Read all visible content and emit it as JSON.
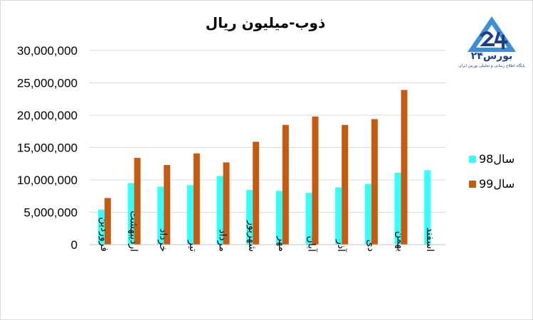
{
  "chart_data": {
    "type": "bar",
    "title": "ذوب-میلیون ریال",
    "categories": [
      "فروردین",
      "اردیبهشت",
      "خرداد",
      "تیر",
      "مرداد",
      "شهریور",
      "مهر",
      "آبان",
      "آذر",
      "دی",
      "بهمن",
      "اسفند"
    ],
    "series": [
      {
        "name": "سال98",
        "color": "#33ffff",
        "values": [
          5400000,
          9500000,
          8950000,
          9200000,
          10600000,
          8450000,
          8300000,
          8000000,
          8850000,
          9400000,
          11100000,
          11500000
        ]
      },
      {
        "name": "سال99",
        "color": "#c55a11",
        "values": [
          7200000,
          13400000,
          12300000,
          14100000,
          12700000,
          15900000,
          18500000,
          19800000,
          18500000,
          19400000,
          23900000,
          null
        ]
      }
    ],
    "yticks": [
      "0",
      "5,000,000",
      "10,000,000",
      "15,000,000",
      "20,000,000",
      "25,000,000",
      "30,000,000"
    ],
    "ylim": [
      0,
      30000000
    ],
    "grid": true,
    "legend_position": "right"
  },
  "logo": {
    "brand": "بورس۲۴",
    "tagline": "پایگاه اطلاع رسانی و تحلیلی بورس ایران"
  }
}
